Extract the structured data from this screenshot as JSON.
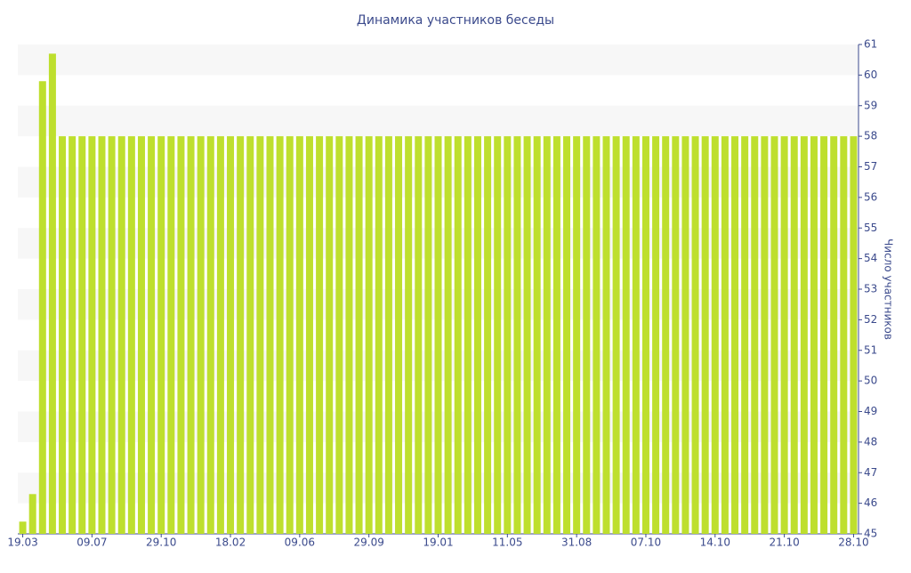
{
  "chart_data": {
    "type": "bar",
    "title": "Динамика участников беседы",
    "y_label": "Число участников",
    "color": "#bedf2e",
    "categories": [
      "19.03",
      null,
      null,
      null,
      null,
      null,
      null,
      "09.07",
      null,
      null,
      null,
      null,
      null,
      null,
      "29.10",
      null,
      null,
      null,
      null,
      null,
      null,
      "18.02",
      null,
      null,
      null,
      null,
      null,
      null,
      "09.06",
      null,
      null,
      null,
      null,
      null,
      null,
      "29.09",
      null,
      null,
      null,
      null,
      null,
      null,
      "19.01",
      null,
      null,
      null,
      null,
      null,
      null,
      "11.05",
      null,
      null,
      null,
      null,
      null,
      null,
      "31.08",
      null,
      null,
      null,
      null,
      null,
      null,
      "07.10",
      null,
      null,
      null,
      null,
      null,
      null,
      "14.10",
      null,
      null,
      null,
      null,
      null,
      null,
      "21.10",
      null,
      null,
      null,
      null,
      null,
      null,
      "28.10"
    ],
    "values": [
      45.4,
      46.3,
      59.8,
      60.7,
      58,
      58,
      58,
      58,
      58,
      58,
      58,
      58,
      58,
      58,
      58,
      58,
      58,
      58,
      58,
      58,
      58,
      58,
      58,
      58,
      58,
      58,
      58,
      58,
      58,
      58,
      58,
      58,
      58,
      58,
      58,
      58,
      58,
      58,
      58,
      58,
      58,
      58,
      58,
      58,
      58,
      58,
      58,
      58,
      58,
      58,
      58,
      58,
      58,
      58,
      58,
      58,
      58,
      58,
      58,
      58,
      58,
      58,
      58,
      58,
      58,
      58,
      58,
      58,
      58,
      58,
      58,
      58,
      58,
      58,
      58,
      58,
      58,
      58,
      58,
      58,
      58,
      58,
      58,
      58,
      58
    ],
    "ylim": [
      45,
      61
    ],
    "yticks": [
      45,
      46,
      47,
      48,
      49,
      50,
      51,
      52,
      53,
      54,
      55,
      56,
      57,
      58,
      59,
      60,
      61
    ],
    "y_axis_side": "right",
    "banded_background": true
  }
}
